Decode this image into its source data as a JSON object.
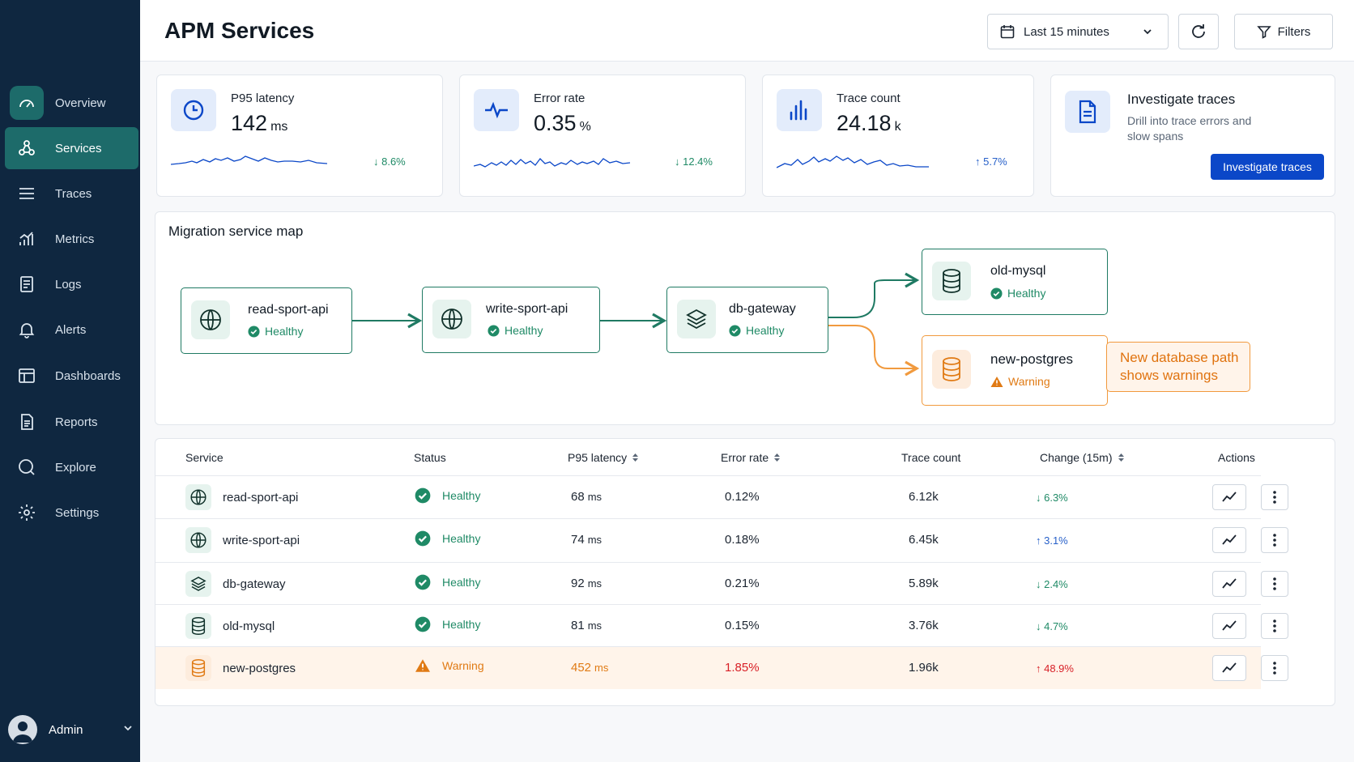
{
  "colors": {
    "sidebar_bg": "#0f2740",
    "accent_teal": "#1d6b6a",
    "primary_blue": "#0b47c8",
    "healthy": "#1f8a66",
    "warning": "#e07a14",
    "danger": "#d81f26"
  },
  "sidebar": {
    "items": [
      {
        "label": "Overview",
        "icon": "gauge-icon"
      },
      {
        "label": "Services",
        "icon": "services-icon",
        "active": true
      },
      {
        "label": "Traces",
        "icon": "list-icon"
      },
      {
        "label": "Metrics",
        "icon": "bar-chart-icon"
      },
      {
        "label": "Logs",
        "icon": "document-icon"
      },
      {
        "label": "Alerts",
        "icon": "bell-icon"
      },
      {
        "label": "Dashboards",
        "icon": "dashboard-icon"
      },
      {
        "label": "Reports",
        "icon": "report-icon"
      },
      {
        "label": "Explore",
        "icon": "search-icon"
      },
      {
        "label": "Settings",
        "icon": "gear-icon"
      }
    ],
    "user": {
      "name": "Admin"
    }
  },
  "header": {
    "title": "APM Services",
    "time_range": "Last 15 minutes",
    "filters_label": "Filters"
  },
  "kpis": {
    "latency": {
      "label": "P95 latency",
      "value": "142",
      "unit": "ms",
      "delta": "↓ 8.6%"
    },
    "error_rate": {
      "label": "Error rate",
      "value": "0.35",
      "unit": "%",
      "delta": "↓ 12.4%"
    },
    "trace_count": {
      "label": "Trace count",
      "value": "24.18",
      "unit": "k",
      "delta": "↑ 5.7%"
    }
  },
  "investigate": {
    "title": "Investigate traces",
    "subtitle": "Drill into trace errors and slow spans",
    "button_label": "Investigate traces"
  },
  "service_map": {
    "title": "Migration service map",
    "nodes": [
      {
        "name": "read-sport-api",
        "status": "Healthy"
      },
      {
        "name": "write-sport-api",
        "status": "Healthy"
      },
      {
        "name": "db-gateway",
        "status": "Healthy"
      },
      {
        "name": "old-mysql",
        "status": "Healthy"
      },
      {
        "name": "new-postgres",
        "status": "Warning"
      }
    ],
    "callout": "New database path shows warnings"
  },
  "table": {
    "columns": {
      "service": "Service",
      "status": "Status",
      "latency": "P95 latency",
      "error_rate": "Error rate",
      "trace_count": "Trace count",
      "change": "Change (15m)",
      "actions": "Actions"
    },
    "latency_unit": "ms",
    "rows": [
      {
        "service": "read-sport-api",
        "status": "Healthy",
        "latency": "68",
        "error_rate": "0.12%",
        "trace_count": "6.12k",
        "change": "↓ 6.3%"
      },
      {
        "service": "write-sport-api",
        "status": "Healthy",
        "latency": "74",
        "error_rate": "0.18%",
        "trace_count": "6.45k",
        "change": "↑ 3.1%"
      },
      {
        "service": "db-gateway",
        "status": "Healthy",
        "latency": "92",
        "error_rate": "0.21%",
        "trace_count": "5.89k",
        "change": "↓ 2.4%"
      },
      {
        "service": "old-mysql",
        "status": "Healthy",
        "latency": "81",
        "error_rate": "0.15%",
        "trace_count": "3.76k",
        "change": "↓ 4.7%"
      },
      {
        "service": "new-postgres",
        "status": "Warning",
        "latency": "452",
        "error_rate": "1.85%",
        "trace_count": "1.96k",
        "change": "↑ 48.9%"
      }
    ]
  }
}
